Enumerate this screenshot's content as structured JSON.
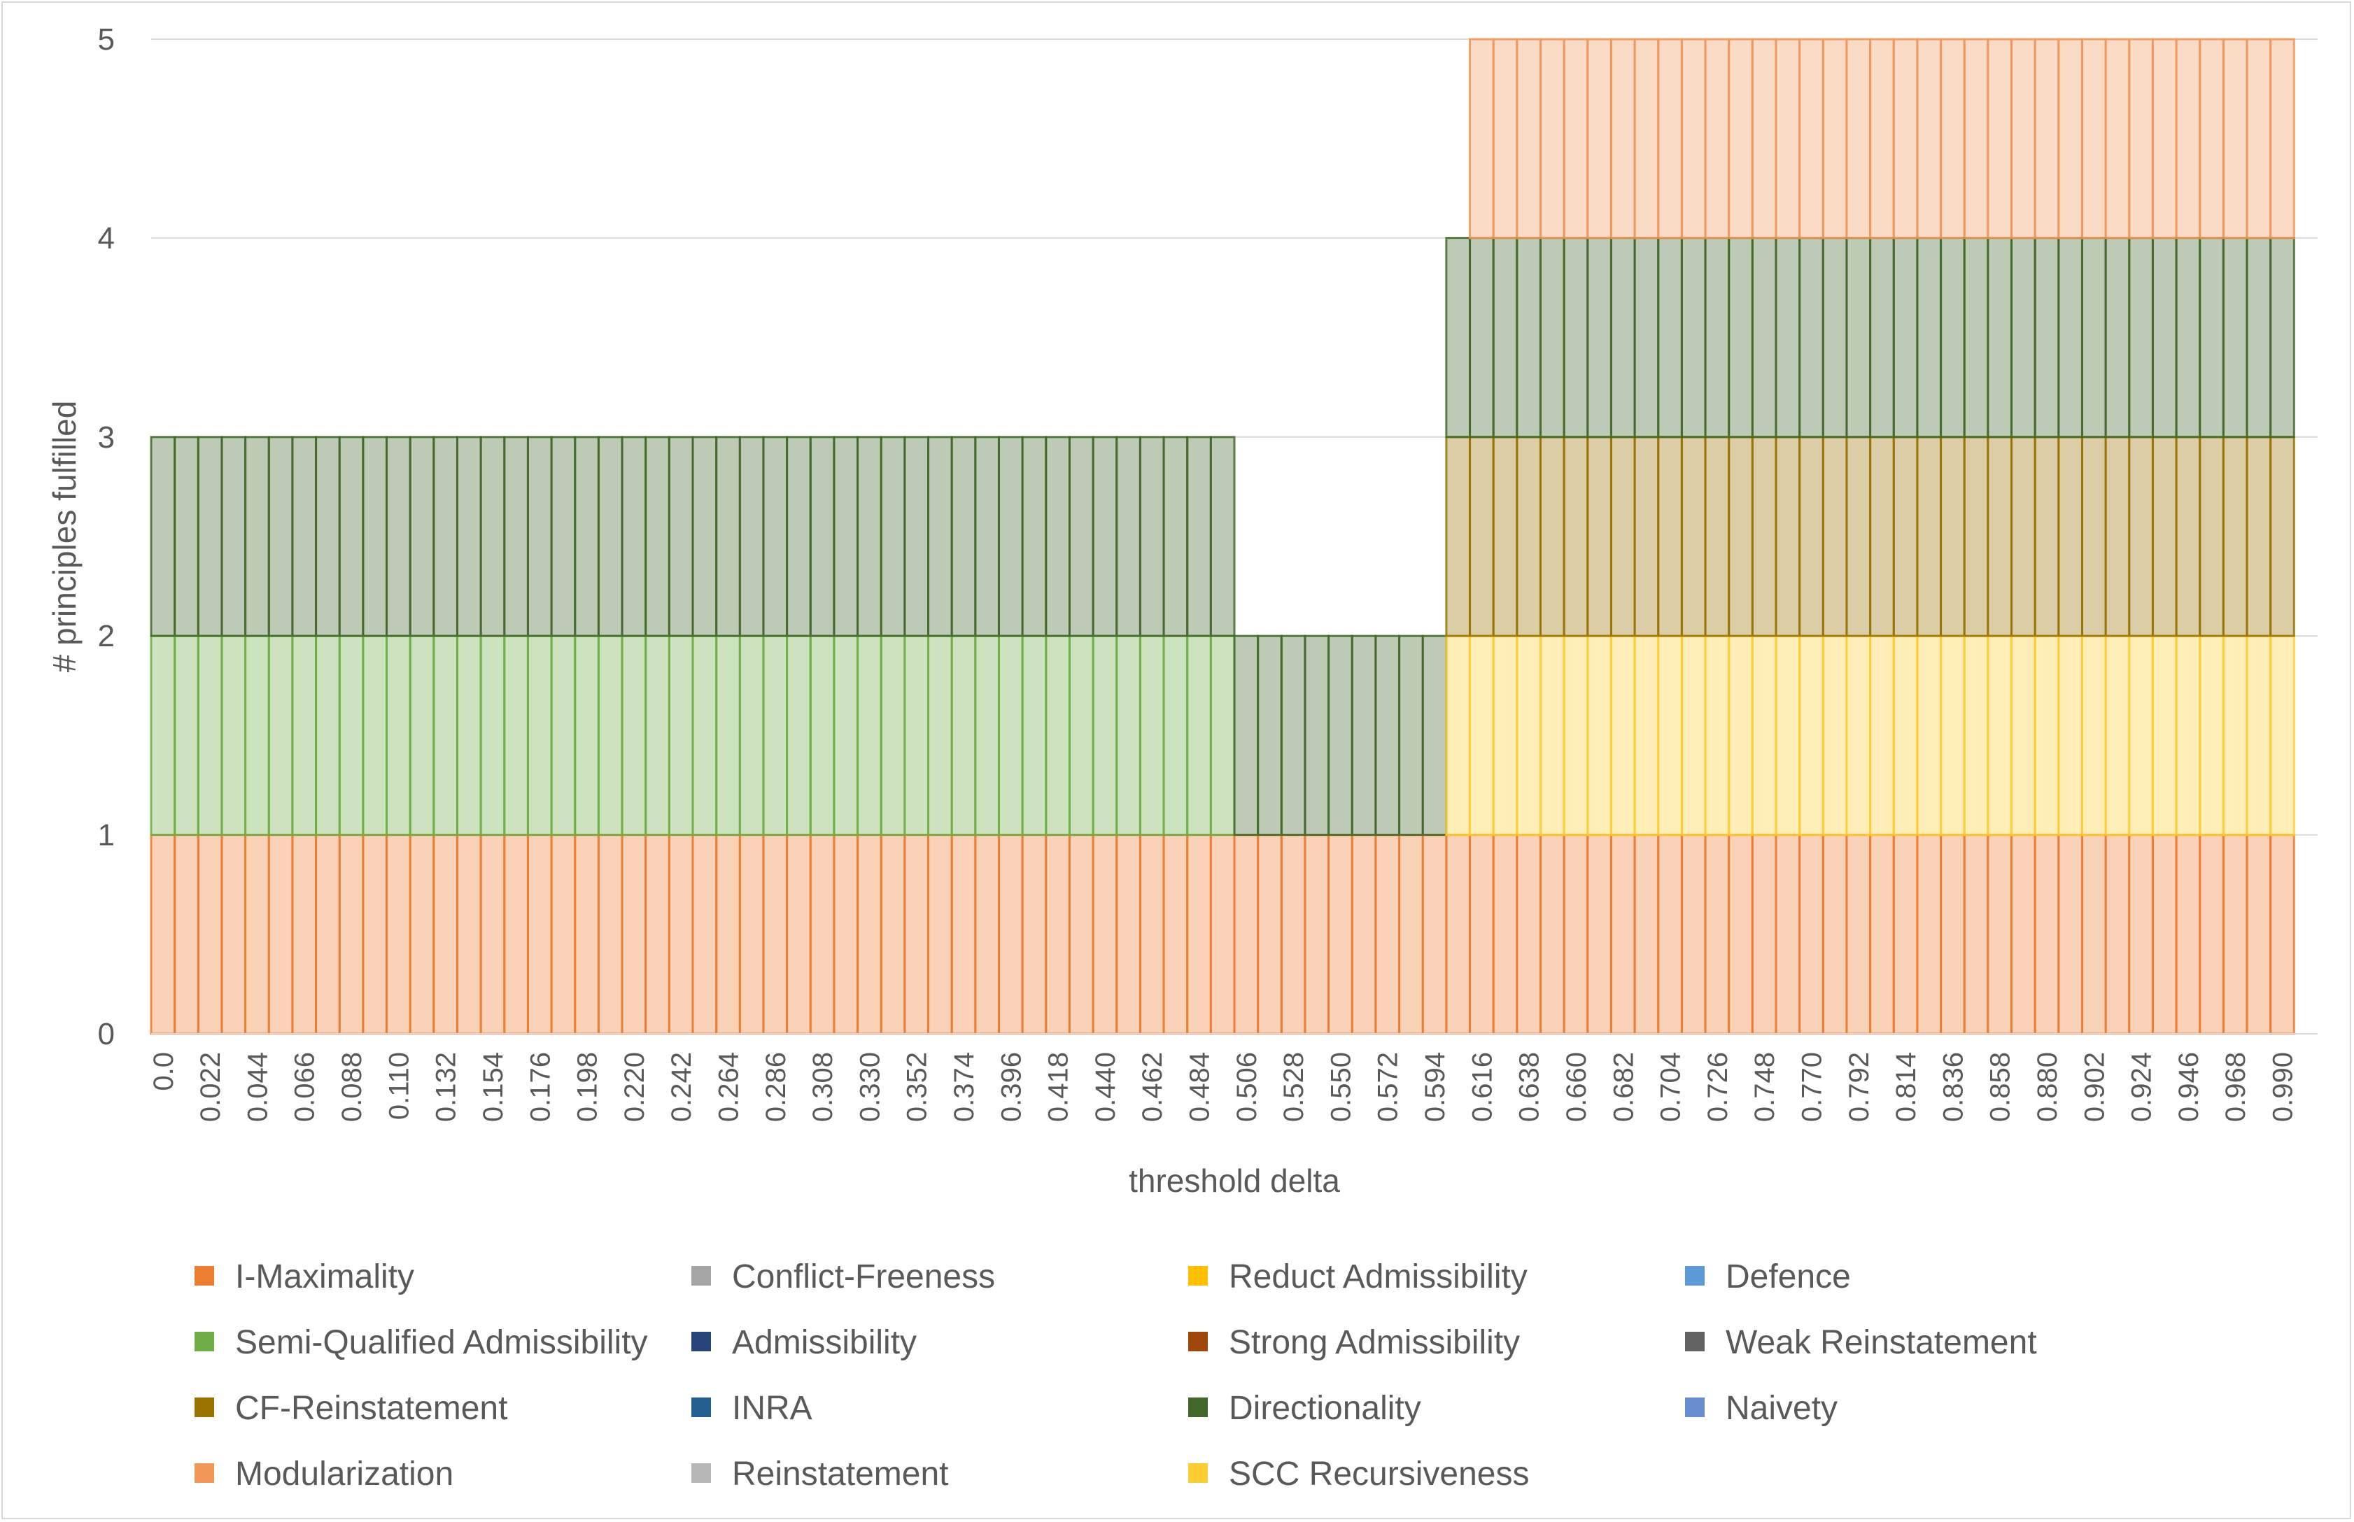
{
  "chart_data": {
    "type": "bar",
    "stacked": true,
    "xlabel": "threshold delta",
    "ylabel": "# principles fulfilled",
    "ylim": [
      0,
      5
    ],
    "yticks": [
      0,
      1,
      2,
      3,
      4,
      5
    ],
    "grid": true,
    "legend_position": "bottom",
    "x_start": 0.0,
    "x_step": 0.011,
    "x_count": 92,
    "x_label_every": 2,
    "first_tick_label": "0.0",
    "segments": [
      {
        "name": "I-Maximality",
        "x_from": 0.0,
        "x_to": 0.99,
        "value": 1
      },
      {
        "name": "Semi-Qualified Admissibility",
        "x_from": 0.0,
        "x_to": 0.495,
        "value": 1
      },
      {
        "name": "Directionality",
        "x_from": 0.0,
        "x_to": 0.495,
        "value": 1
      },
      {
        "name": "Directionality",
        "x_from": 0.506,
        "x_to": 0.594,
        "value": 1
      },
      {
        "name": "SCC Recursiveness",
        "x_from": 0.605,
        "x_to": 0.99,
        "value": 1
      },
      {
        "name": "CF-Reinstatement",
        "x_from": 0.605,
        "x_to": 0.99,
        "value": 1
      },
      {
        "name": "Directionality",
        "x_from": 0.605,
        "x_to": 0.99,
        "value": 1
      },
      {
        "name": "Modularization",
        "x_from": 0.616,
        "x_to": 0.99,
        "value": 1
      }
    ],
    "legend": [
      {
        "name": "I-Maximality",
        "color": "#ED7D31"
      },
      {
        "name": "Conflict-Freeness",
        "color": "#A5A5A5"
      },
      {
        "name": "Reduct Admissibility",
        "color": "#FFC000"
      },
      {
        "name": "Defence",
        "color": "#5B9BD5"
      },
      {
        "name": "Semi-Qualified Admissibility",
        "color": "#70AD47"
      },
      {
        "name": "Admissibility",
        "color": "#264478"
      },
      {
        "name": "Strong Admissibility",
        "color": "#9E480E"
      },
      {
        "name": "Weak Reinstatement",
        "color": "#636363"
      },
      {
        "name": "CF-Reinstatement",
        "color": "#997300"
      },
      {
        "name": "INRA",
        "color": "#255E91"
      },
      {
        "name": "Directionality",
        "color": "#43682B"
      },
      {
        "name": "Naivety",
        "color": "#698ED0"
      },
      {
        "name": "Modularization",
        "color": "#F1975A"
      },
      {
        "name": "Reinstatement",
        "color": "#B7B7B7"
      },
      {
        "name": "SCC Recursiveness",
        "color": "#FFCD33"
      }
    ]
  }
}
